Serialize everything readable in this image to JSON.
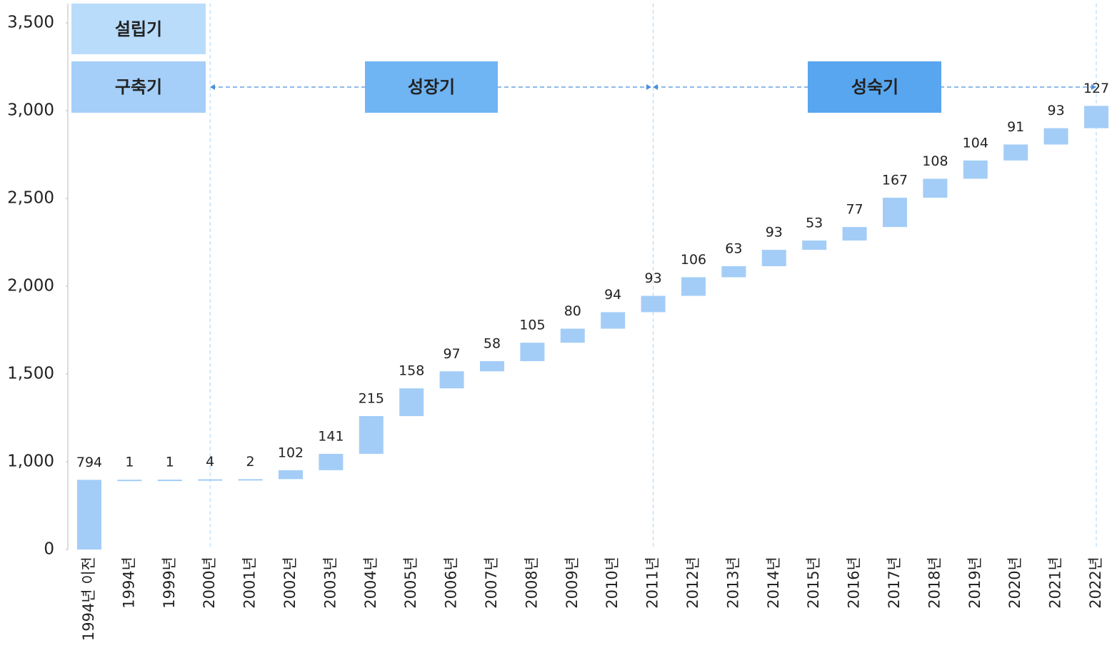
{
  "chart_data": {
    "type": "waterfall",
    "phases": [
      "설립기",
      "구축기",
      "성장기",
      "성숙기"
    ],
    "categories": [
      "1994년 이전",
      "1994년",
      "1999년",
      "2000년",
      "2001년",
      "2002년",
      "2003년",
      "2004년",
      "2005년",
      "2006년",
      "2007년",
      "2008년",
      "2009년",
      "2010년",
      "2011년",
      "2012년",
      "2013년",
      "2014년",
      "2015년",
      "2016년",
      "2017년",
      "2018년",
      "2019년",
      "2020년",
      "2021년",
      "2022년"
    ],
    "values": [
      794,
      1,
      1,
      4,
      2,
      102,
      141,
      215,
      158,
      97,
      58,
      105,
      80,
      94,
      93,
      106,
      63,
      93,
      53,
      77,
      167,
      108,
      104,
      91,
      93,
      127
    ],
    "color": "#a3cdf7",
    "ylim": [
      0,
      3500
    ],
    "yticks": [
      0,
      {
        "value": 1000,
        "label": "1,000"
      },
      {
        "value": 1500,
        "label": "1,500"
      },
      {
        "value": 2000,
        "label": "2,000"
      },
      {
        "value": 2500,
        "label": "2,500"
      },
      {
        "value": 3000,
        "label": "3,000"
      },
      {
        "value": 3500,
        "label": "3,500"
      }
    ],
    "grid": false
  }
}
